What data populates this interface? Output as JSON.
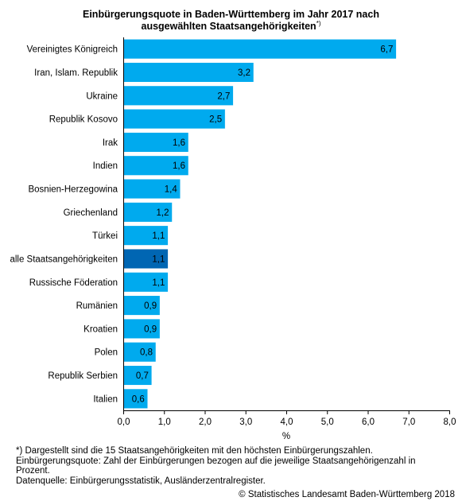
{
  "title": {
    "line1": "Einbürgerungsquote in Baden-Württemberg im Jahr 2017 nach",
    "line2": "ausgewählten Staatsangehörigkeiten",
    "marker": "*)"
  },
  "chart_data": {
    "type": "bar",
    "orientation": "horizontal",
    "categories": [
      "Vereinigtes Königreich",
      "Iran, Islam. Republik",
      "Ukraine",
      "Republik Kosovo",
      "Irak",
      "Indien",
      "Bosnien-Herzegowina",
      "Griechenland",
      "Türkei",
      "alle Staatsangehörigkeiten",
      "Russische Föderation",
      "Rumänien",
      "Kroatien",
      "Polen",
      "Republik Serbien",
      "Italien"
    ],
    "values": [
      6.7,
      3.2,
      2.7,
      2.5,
      1.6,
      1.6,
      1.4,
      1.2,
      1.1,
      1.1,
      1.1,
      0.9,
      0.9,
      0.8,
      0.7,
      0.6
    ],
    "value_labels": [
      "6,7",
      "3,2",
      "2,7",
      "2,5",
      "1,6",
      "1,6",
      "1,4",
      "1,2",
      "1,1",
      "1,1",
      "1,1",
      "0,9",
      "0,9",
      "0,8",
      "0,7",
      "0,6"
    ],
    "highlight_index": 9,
    "xlabel": "%",
    "xlim": [
      0,
      8
    ],
    "xticks": [
      0,
      1,
      2,
      3,
      4,
      5,
      6,
      7,
      8
    ],
    "xtick_labels": [
      "0,0",
      "1,0",
      "2,0",
      "3,0",
      "4,0",
      "5,0",
      "6,0",
      "7,0",
      "8,0"
    ],
    "grid": false,
    "colors": {
      "bar": "#00aaee",
      "highlight": "#0066b3",
      "bar_outline": "#ffffff",
      "axis": "#000000"
    }
  },
  "footnotes": [
    "*) Dargestellt sind die 15 Staatsangehörigkeiten mit den höchsten Einbürgerungszahlen.",
    "Einbürgerungsquote: Zahl der Einbürgerungen bezogen auf die jeweilige Staatsangehörigenzahl in",
    "Prozent.",
    "Datenquelle: Einbürgerungsstatistik, Ausländerzentralregister."
  ],
  "copyright": "© Statistisches Landesamt Baden-Württemberg 2018"
}
